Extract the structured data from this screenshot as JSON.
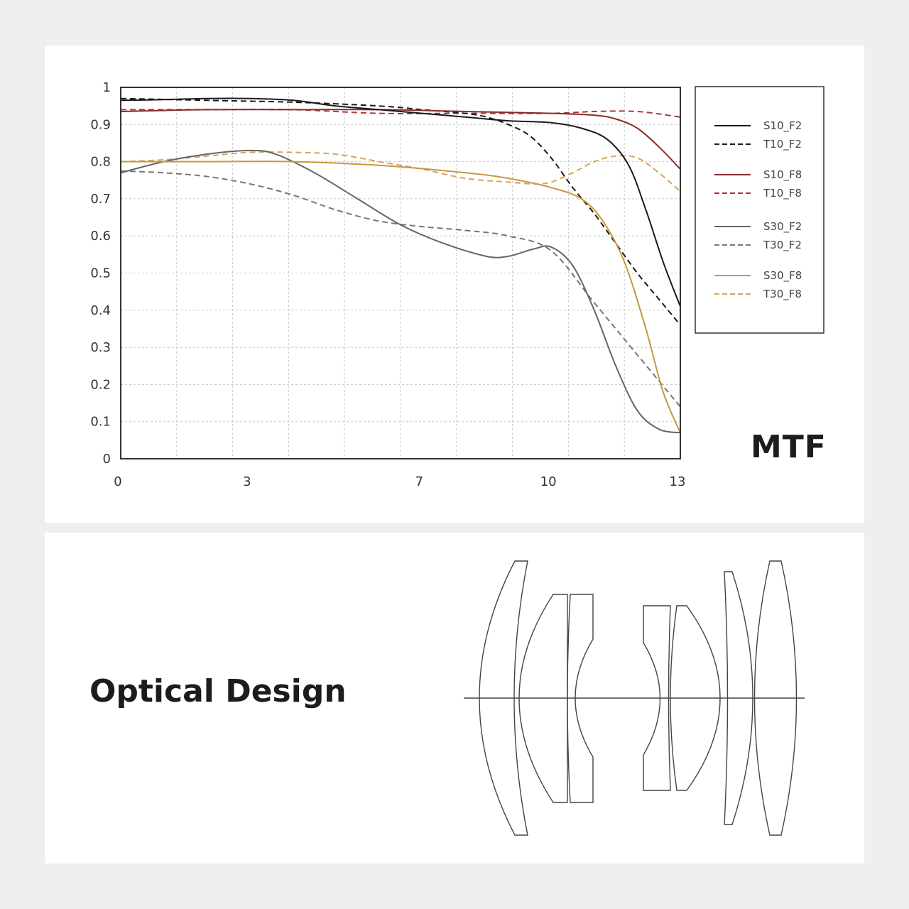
{
  "titles": {
    "mtf": "MTF",
    "optical": "Optical Design"
  },
  "chart_data": {
    "type": "line",
    "xlim": [
      0,
      13
    ],
    "ylim": [
      0,
      1
    ],
    "x_ticks": [
      "0",
      "3",
      "7",
      "10",
      "13"
    ],
    "y_ticks": [
      "0",
      "0.1",
      "0.2",
      "0.3",
      "0.4",
      "0.5",
      "0.6",
      "0.7",
      "0.8",
      "0.9",
      "1"
    ],
    "grid": true,
    "legend_position": "right",
    "series": [
      {
        "name": "S10_F2",
        "color": "#1a1a1a",
        "dash": false,
        "x": [
          0,
          1,
          2,
          3,
          4,
          5,
          6,
          7,
          8,
          9,
          10,
          10.7,
          11.3,
          11.8,
          12.2,
          12.6,
          13
        ],
        "y": [
          0.965,
          0.967,
          0.97,
          0.97,
          0.965,
          0.95,
          0.94,
          0.93,
          0.92,
          0.91,
          0.905,
          0.89,
          0.86,
          0.79,
          0.67,
          0.53,
          0.41
        ]
      },
      {
        "name": "T10_F2",
        "color": "#1a1a1a",
        "dash": true,
        "x": [
          0,
          2,
          4,
          6,
          7,
          8,
          8.5,
          9,
          9.5,
          10,
          10.5,
          11,
          11.5,
          12,
          12.5,
          13
        ],
        "y": [
          0.97,
          0.965,
          0.96,
          0.95,
          0.94,
          0.93,
          0.92,
          0.9,
          0.87,
          0.81,
          0.73,
          0.66,
          0.58,
          0.5,
          0.43,
          0.36
        ]
      },
      {
        "name": "S10_F8",
        "color": "#8b2b2b",
        "dash": false,
        "x": [
          0,
          2,
          4,
          6,
          8,
          10,
          11,
          11.5,
          12,
          12.5,
          13
        ],
        "y": [
          0.935,
          0.94,
          0.94,
          0.94,
          0.935,
          0.93,
          0.925,
          0.915,
          0.89,
          0.84,
          0.78
        ]
      },
      {
        "name": "T10_F8",
        "color": "#a83a3a",
        "dash": true,
        "x": [
          0,
          2,
          4,
          6,
          8,
          10,
          11,
          12,
          13
        ],
        "y": [
          0.94,
          0.94,
          0.94,
          0.93,
          0.93,
          0.93,
          0.935,
          0.935,
          0.92
        ]
      },
      {
        "name": "S30_F2",
        "color": "#666666",
        "dash": false,
        "x": [
          0,
          1,
          2,
          3,
          3.6,
          4.5,
          5.5,
          6.5,
          7.5,
          8.5,
          9,
          9.6,
          10,
          10.5,
          11,
          11.5,
          12,
          12.5,
          13
        ],
        "y": [
          0.77,
          0.8,
          0.82,
          0.83,
          0.82,
          0.77,
          0.7,
          0.63,
          0.58,
          0.545,
          0.545,
          0.565,
          0.57,
          0.52,
          0.4,
          0.25,
          0.13,
          0.08,
          0.07
        ]
      },
      {
        "name": "T30_F2",
        "color": "#777777",
        "dash": true,
        "x": [
          0,
          1,
          2,
          3,
          4,
          5,
          6,
          7,
          8,
          9,
          10,
          11,
          12,
          13
        ],
        "y": [
          0.775,
          0.77,
          0.76,
          0.74,
          0.71,
          0.67,
          0.64,
          0.625,
          0.615,
          0.6,
          0.56,
          0.42,
          0.28,
          0.14
        ]
      },
      {
        "name": "S30_F8",
        "color": "#c9973f",
        "dash": false,
        "x": [
          0,
          2,
          4,
          6,
          8,
          9,
          10,
          10.7,
          11.2,
          11.7,
          12.2,
          12.6,
          13
        ],
        "y": [
          0.8,
          0.8,
          0.8,
          0.79,
          0.77,
          0.755,
          0.73,
          0.7,
          0.64,
          0.53,
          0.35,
          0.18,
          0.07
        ]
      },
      {
        "name": "T30_F8",
        "color": "#d6a45a",
        "dash": true,
        "x": [
          0,
          1,
          2,
          3,
          4,
          5,
          6,
          7,
          8,
          9,
          9.6,
          10,
          10.5,
          11,
          11.5,
          12,
          12.5,
          13
        ],
        "y": [
          0.8,
          0.805,
          0.815,
          0.825,
          0.825,
          0.82,
          0.8,
          0.78,
          0.755,
          0.745,
          0.74,
          0.745,
          0.77,
          0.8,
          0.815,
          0.81,
          0.77,
          0.72
        ]
      }
    ]
  },
  "colors": {
    "page_bg": "#efefef",
    "panel_bg": "#ffffff",
    "frame": "#333333",
    "grid": "#c8c8c8"
  }
}
